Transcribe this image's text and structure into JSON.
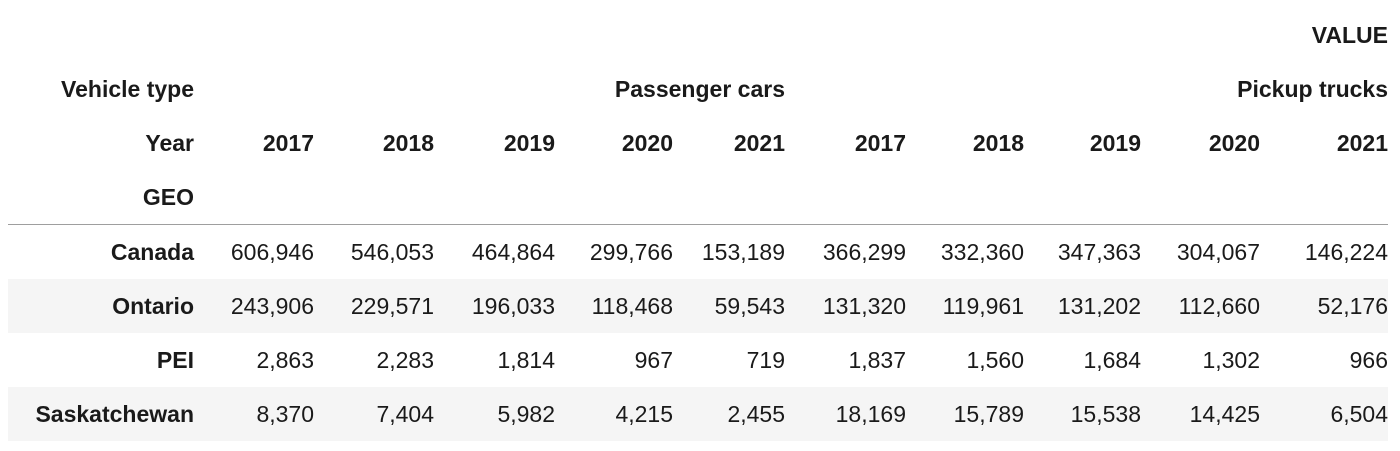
{
  "header": {
    "value_label": "VALUE",
    "vehicle_type_label": "Vehicle type",
    "vehicle_types": [
      "Passenger cars",
      "Pickup trucks"
    ],
    "year_label": "Year",
    "years": [
      "2017",
      "2018",
      "2019",
      "2020",
      "2021",
      "2017",
      "2018",
      "2019",
      "2020",
      "2021"
    ],
    "geo_label": "GEO"
  },
  "rows": [
    {
      "geo": "Canada",
      "values": [
        "606,946",
        "546,053",
        "464,864",
        "299,766",
        "153,189",
        "366,299",
        "332,360",
        "347,363",
        "304,067",
        "146,224"
      ]
    },
    {
      "geo": "Ontario",
      "values": [
        "243,906",
        "229,571",
        "196,033",
        "118,468",
        "59,543",
        "131,320",
        "119,961",
        "131,202",
        "112,660",
        "52,176"
      ]
    },
    {
      "geo": "PEI",
      "values": [
        "2,863",
        "2,283",
        "1,814",
        "967",
        "719",
        "1,837",
        "1,560",
        "1,684",
        "1,302",
        "966"
      ]
    },
    {
      "geo": "Saskatchewan",
      "values": [
        "8,370",
        "7,404",
        "5,982",
        "4,215",
        "2,455",
        "18,169",
        "15,789",
        "15,538",
        "14,425",
        "6,504"
      ]
    }
  ]
}
